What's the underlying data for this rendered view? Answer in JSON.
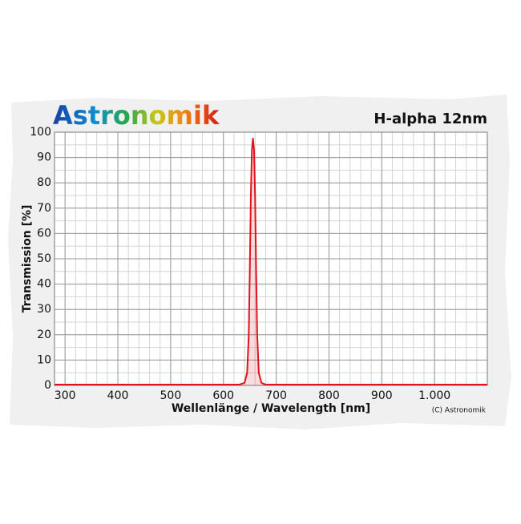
{
  "chart_data": {
    "type": "line",
    "brand": "Astronomik",
    "title": "H-alpha 12nm",
    "xlabel": "Wellenlänge / Wavelength [nm]",
    "ylabel": "Transmission [%]",
    "credit": "(C) Astronomik",
    "xlim": [
      280,
      1100
    ],
    "ylim": [
      0,
      100
    ],
    "xticks": [
      300,
      400,
      500,
      600,
      700,
      800,
      900,
      {
        "value": 1000,
        "label": "1.000"
      }
    ],
    "yticks": [
      0,
      10,
      20,
      30,
      40,
      50,
      60,
      70,
      80,
      90,
      100
    ],
    "grid": true,
    "series": [
      {
        "name": "H-alpha 12nm",
        "color": "#e0141e",
        "x": [
          280,
          630,
          640,
          645,
          648,
          650,
          652,
          654,
          656,
          658,
          660,
          662,
          664,
          667,
          672,
          680,
          1100
        ],
        "values": [
          0.3,
          0.3,
          1,
          5,
          20,
          45,
          75,
          93,
          97.5,
          93,
          75,
          45,
          20,
          5,
          1,
          0.3,
          0.3
        ]
      }
    ]
  }
}
